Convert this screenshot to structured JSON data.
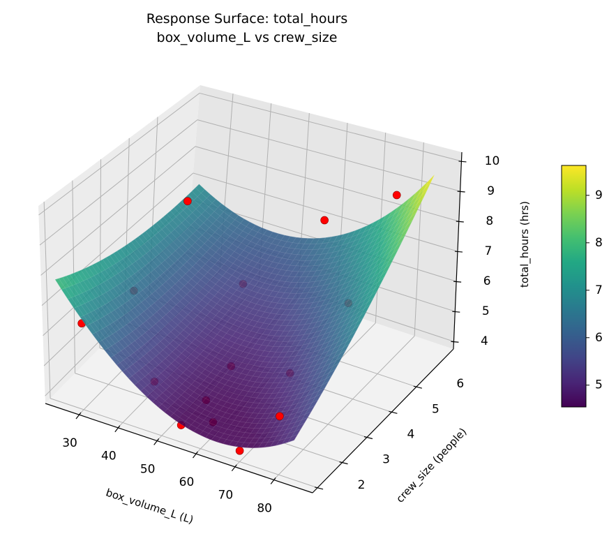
{
  "chart_data": {
    "type": "surface",
    "title": [
      "Response Surface: total_hours",
      "box_volume_L vs crew_size"
    ],
    "xlabel": "box_volume_L (L)",
    "ylabel": "crew_size (people)",
    "zlabel": "total_hours (hrs)",
    "xlim": [
      21.4,
      90
    ],
    "ylim": [
      1.8,
      7.5
    ],
    "zlim": [
      3.75,
      10.3
    ],
    "xticks": [
      30,
      40,
      50,
      60,
      70,
      80
    ],
    "yticks": [
      2,
      3,
      4,
      5,
      6
    ],
    "zticks": [
      4,
      5,
      6,
      7,
      8,
      9,
      10
    ],
    "grid": true,
    "colormap": "viridis",
    "surface": {
      "x_range": [
        25,
        85
      ],
      "y_range": [
        1.8,
        7.2
      ],
      "model": "quadratic",
      "coefficients": {
        "const": 15.683,
        "x": -0.32111,
        "y": -1.0957,
        "x2": 0.0022222,
        "y2": 0.05487,
        "xy": 0.016667
      },
      "alpha": 0.88
    },
    "points": {
      "color": "#ff0000",
      "x": [
        30,
        65,
        80,
        80,
        30,
        30,
        45,
        55,
        55,
        70,
        75,
        45,
        55,
        70,
        60
      ],
      "y": [
        6,
        6,
        6.5,
        2,
        2,
        4,
        6,
        4,
        3,
        4,
        5.5,
        2.5,
        2,
        2,
        2.5
      ],
      "z": [
        7.6,
        8.3,
        9.3,
        5.6,
        6.6,
        6.1,
        5.3,
        4.6,
        4.3,
        5.0,
        6.3,
        4.9,
        4.3,
        4.1,
        4.2
      ]
    },
    "colorbar": {
      "range": [
        4.54,
        9.63
      ],
      "ticks": [
        5,
        6,
        7,
        8,
        9
      ],
      "position": "right"
    }
  }
}
